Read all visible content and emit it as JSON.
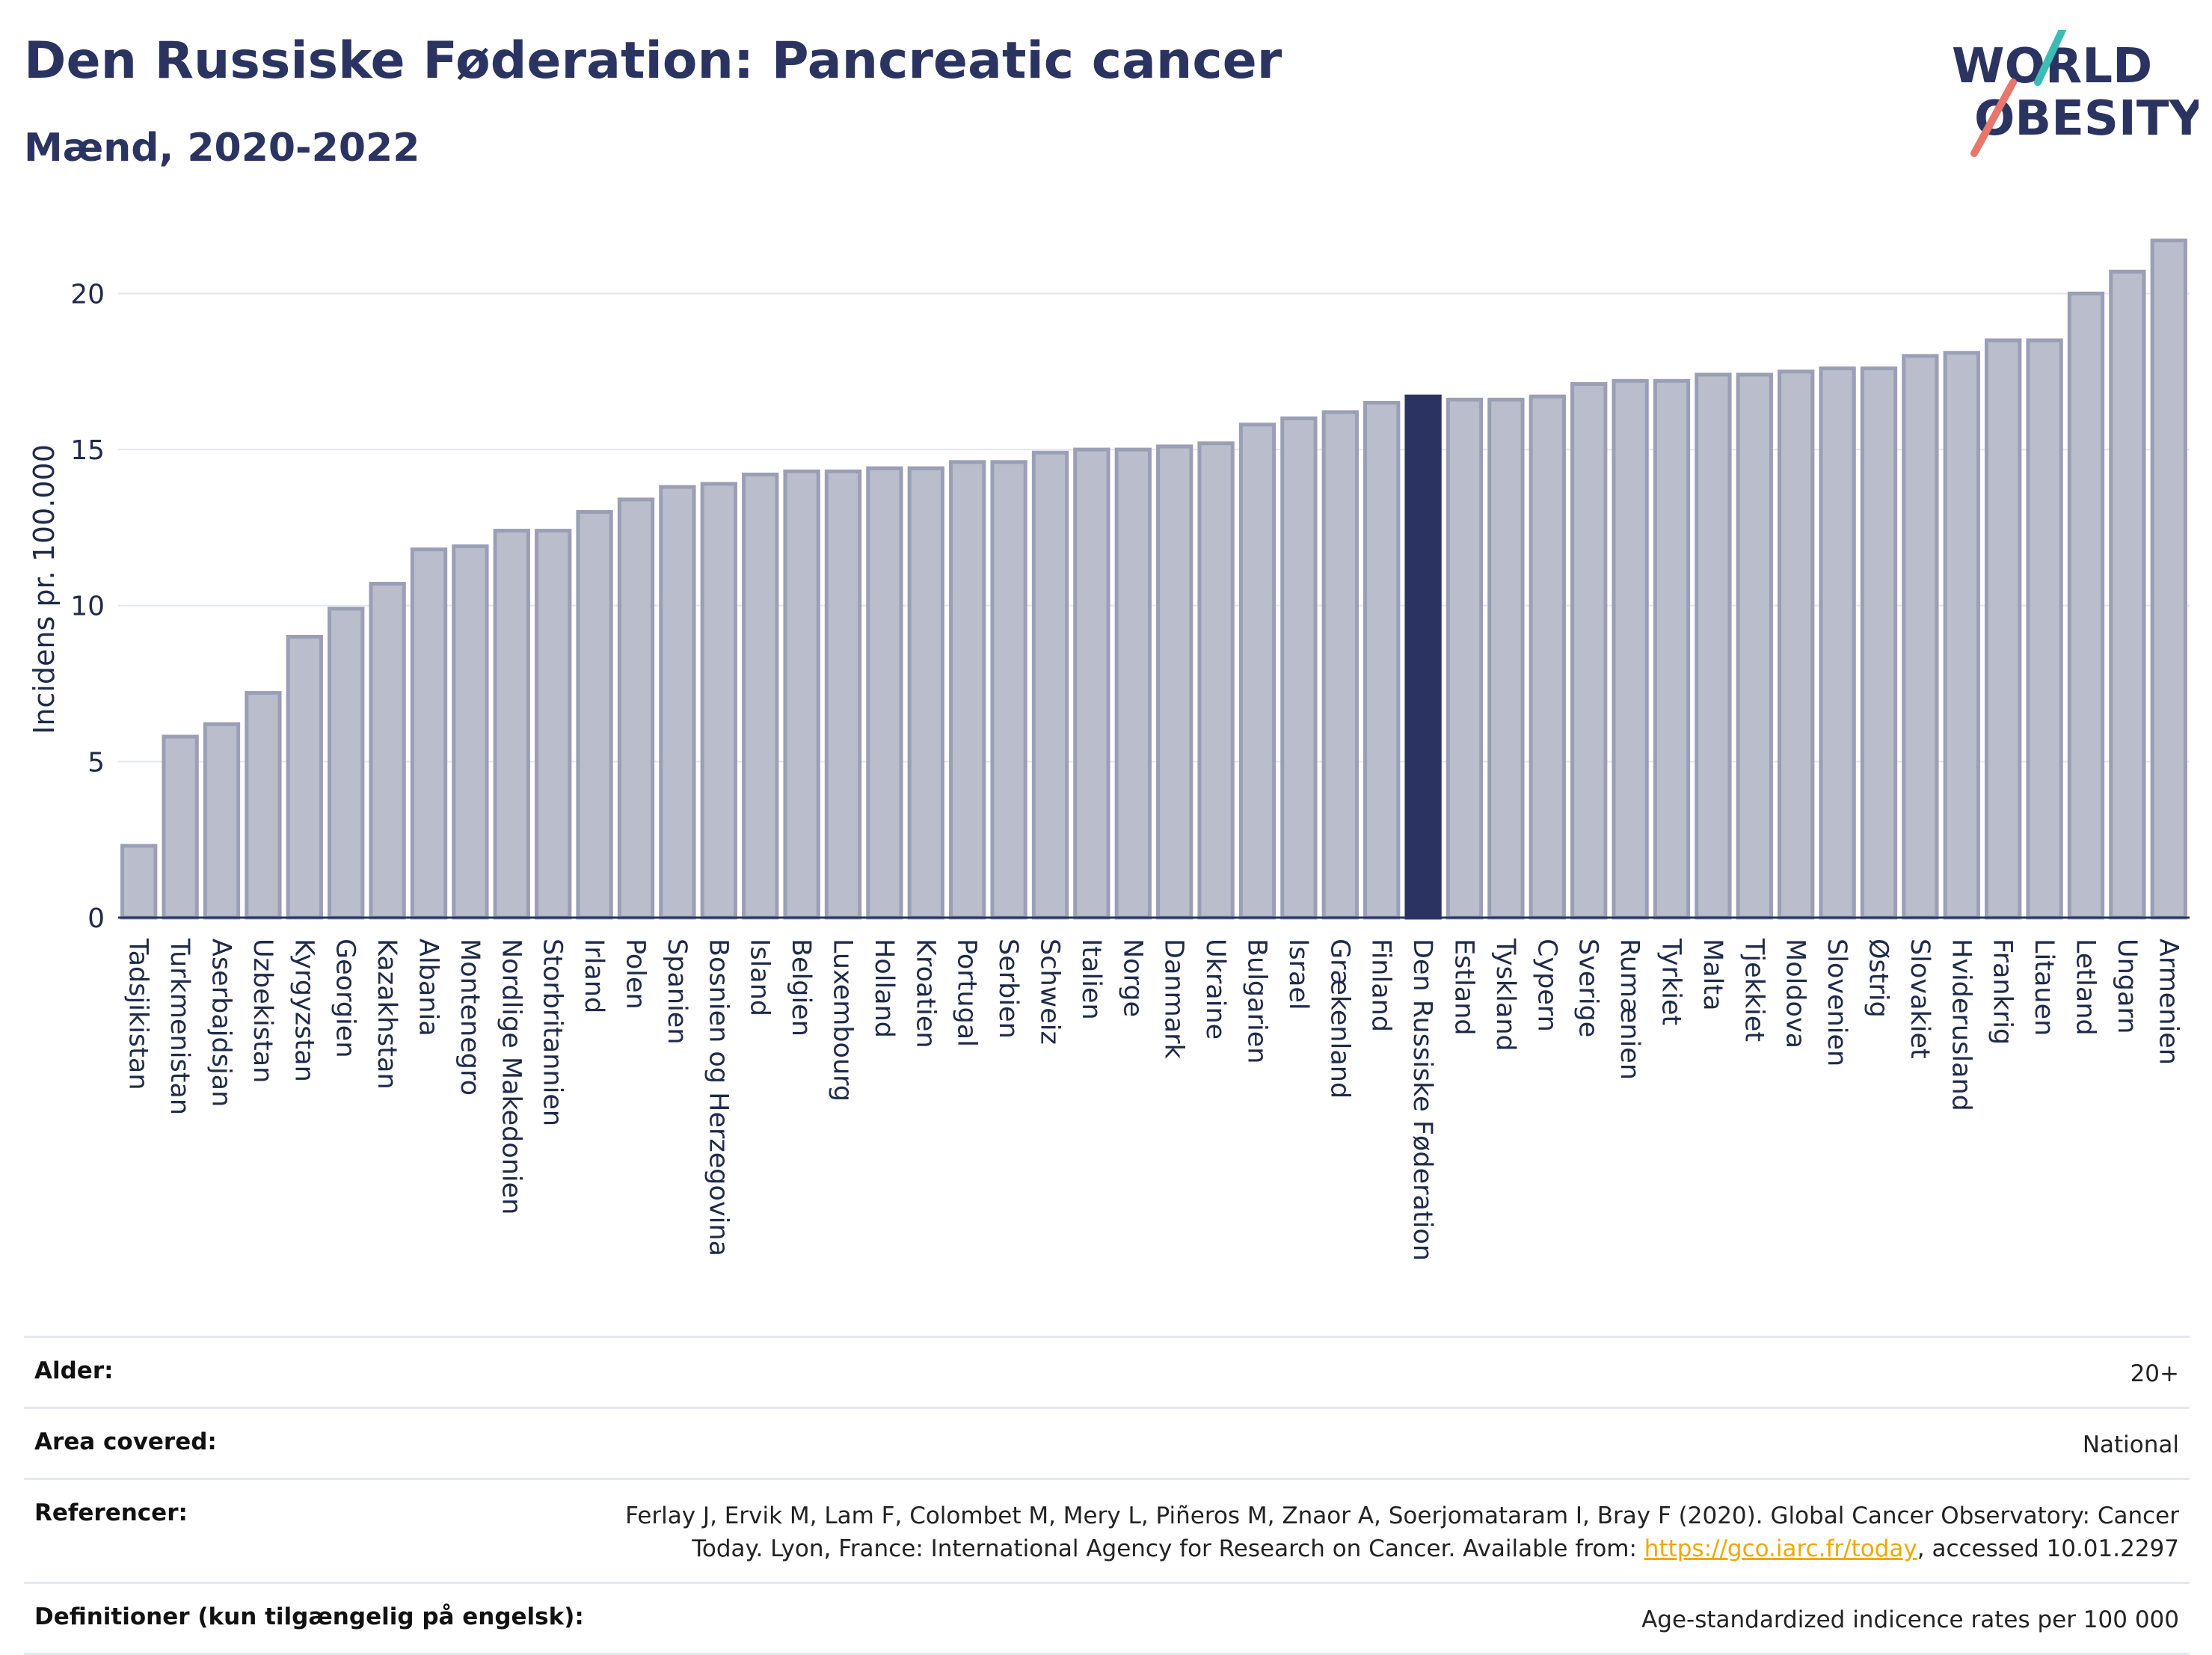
{
  "header": {
    "title": "Den Russiske Føderation: Pancreatic cancer",
    "subtitle": "Mænd, 2020-2022"
  },
  "logo": {
    "line1": "WORLD",
    "line2": "OBESITY",
    "accent_teal": "#3cbcb4",
    "accent_coral": "#e8766a"
  },
  "colors": {
    "bar": "#b9bdcc",
    "bar_stroke": "#9a9fb5",
    "highlight": "#2b3461",
    "grid": "#e4e6ee",
    "text": "#2b3461"
  },
  "chart_data": {
    "type": "bar",
    "title": "Den Russiske Føderation: Pancreatic cancer",
    "subtitle": "Mænd, 2020-2022",
    "xlabel": "",
    "ylabel": "Incidens pr. 100.000",
    "ylim": [
      0,
      22
    ],
    "yticks": [
      0,
      5,
      10,
      15,
      20
    ],
    "grid": true,
    "highlight": "Den Russiske Føderation",
    "categories": [
      "Tadsjikistan",
      "Turkmenistan",
      "Aserbajdsjan",
      "Uzbekistan",
      "Kyrgyzstan",
      "Georgien",
      "Kazakhstan",
      "Albania",
      "Montenegro",
      "Nordlige Makedonien",
      "Storbritannien",
      "Irland",
      "Polen",
      "Spanien",
      "Bosnien og Herzegovina",
      "Island",
      "Belgien",
      "Luxembourg",
      "Holland",
      "Kroatien",
      "Portugal",
      "Serbien",
      "Schweiz",
      "Italien",
      "Norge",
      "Danmark",
      "Ukraine",
      "Bulgarien",
      "Israel",
      "Grækenland",
      "Finland",
      "Den Russiske Føderation",
      "Estland",
      "Tyskland",
      "Cypern",
      "Sverige",
      "Rumænien",
      "Tyrkiet",
      "Malta",
      "Tjekkiet",
      "Moldova",
      "Slovenien",
      "Østrig",
      "Slovakiet",
      "Hviderusland",
      "Frankrig",
      "Litauen",
      "Letland",
      "Ungarn",
      "Armenien"
    ],
    "values": [
      2.3,
      5.8,
      6.2,
      7.2,
      9.0,
      9.9,
      10.7,
      11.8,
      11.9,
      12.4,
      12.4,
      13.0,
      13.4,
      13.8,
      13.9,
      14.2,
      14.3,
      14.3,
      14.4,
      14.4,
      14.6,
      14.6,
      14.9,
      15.0,
      15.0,
      15.1,
      15.2,
      15.8,
      16.0,
      16.2,
      16.5,
      16.7,
      16.6,
      16.6,
      16.7,
      17.1,
      17.2,
      17.2,
      17.4,
      17.4,
      17.5,
      17.6,
      17.6,
      18.0,
      18.1,
      18.5,
      18.5,
      20.0,
      20.7,
      21.7
    ]
  },
  "meta": [
    {
      "label": "Alder:",
      "value": "20+"
    },
    {
      "label": "Area covered:",
      "value": "National"
    },
    {
      "label": "Referencer:",
      "value_pre": "Ferlay J, Ervik M, Lam F, Colombet M, Mery L, Piñeros M, Znaor A, Soerjomataram I, Bray F (2020). Global Cancer Observatory: Cancer Today. Lyon, France: International Agency for Research on Cancer. Available from: ",
      "link": "https://gco.iarc.fr/today",
      "value_post": ", accessed 10.01.2297"
    },
    {
      "label": "Definitioner (kun tilgængelig på engelsk):",
      "value": "Age-standardized indicence rates per 100 000"
    }
  ]
}
